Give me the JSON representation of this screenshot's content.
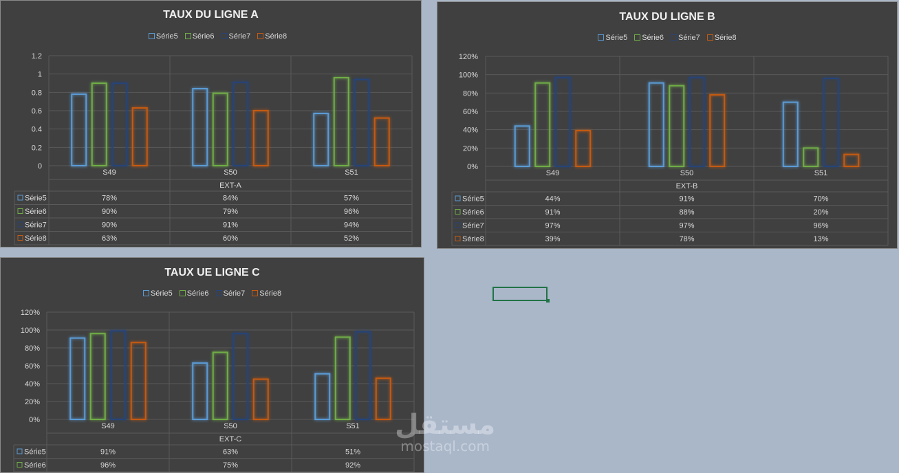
{
  "chart_data": [
    {
      "type": "bar",
      "title": "TAUX DU LIGNE A",
      "categories": [
        "S49",
        "S50",
        "S51"
      ],
      "group_label": "EXT-A",
      "ylim": [
        0,
        1.2
      ],
      "ytick_values": [
        0,
        0.2,
        0.4,
        0.6,
        0.8,
        1,
        1.2
      ],
      "yticks": [
        "0",
        "0.2",
        "0.4",
        "0.6",
        "0.8",
        "1",
        "1.2"
      ],
      "series": [
        {
          "name": "Série5",
          "color": "#5b9bd5",
          "values": [
            0.78,
            0.84,
            0.57
          ],
          "labels": [
            "78%",
            "84%",
            "57%"
          ]
        },
        {
          "name": "Série6",
          "color": "#70ad47",
          "values": [
            0.9,
            0.79,
            0.96
          ],
          "labels": [
            "90%",
            "79%",
            "96%"
          ]
        },
        {
          "name": "Série7",
          "color": "#264478",
          "values": [
            0.9,
            0.91,
            0.94
          ],
          "labels": [
            "90%",
            "91%",
            "94%"
          ]
        },
        {
          "name": "Série8",
          "color": "#c55a11",
          "values": [
            0.63,
            0.6,
            0.52
          ],
          "labels": [
            "63%",
            "60%",
            "52%"
          ]
        }
      ]
    },
    {
      "type": "bar",
      "title": "TAUX DU LIGNE B",
      "categories": [
        "S49",
        "S50",
        "S51"
      ],
      "group_label": "EXT-B",
      "ylim": [
        0,
        1.2
      ],
      "ytick_values": [
        0,
        0.2,
        0.4,
        0.6,
        0.8,
        1,
        1.2
      ],
      "yticks": [
        "0%",
        "20%",
        "40%",
        "60%",
        "80%",
        "100%",
        "120%"
      ],
      "series": [
        {
          "name": "Série5",
          "color": "#5b9bd5",
          "values": [
            0.44,
            0.91,
            0.7
          ],
          "labels": [
            "44%",
            "91%",
            "70%"
          ]
        },
        {
          "name": "Série6",
          "color": "#70ad47",
          "values": [
            0.91,
            0.88,
            0.2
          ],
          "labels": [
            "91%",
            "88%",
            "20%"
          ]
        },
        {
          "name": "Série7",
          "color": "#264478",
          "values": [
            0.97,
            0.97,
            0.96
          ],
          "labels": [
            "97%",
            "97%",
            "96%"
          ]
        },
        {
          "name": "Série8",
          "color": "#c55a11",
          "values": [
            0.39,
            0.78,
            0.13
          ],
          "labels": [
            "39%",
            "78%",
            "13%"
          ]
        }
      ]
    },
    {
      "type": "bar",
      "title": "TAUX UE LIGNE C",
      "categories": [
        "S49",
        "S50",
        "S51"
      ],
      "group_label": "EXT-C",
      "ylim": [
        0,
        1.2
      ],
      "ytick_values": [
        0,
        0.2,
        0.4,
        0.6,
        0.8,
        1,
        1.2
      ],
      "yticks": [
        "0%",
        "20%",
        "40%",
        "60%",
        "80%",
        "100%",
        "120%"
      ],
      "series": [
        {
          "name": "Série5",
          "color": "#5b9bd5",
          "values": [
            0.91,
            0.63,
            0.51
          ],
          "labels": [
            "91%",
            "63%",
            "51%"
          ]
        },
        {
          "name": "Série6",
          "color": "#70ad47",
          "values": [
            0.96,
            0.75,
            0.92
          ],
          "labels": [
            "96%",
            "75%",
            "92%"
          ]
        },
        {
          "name": "Série7",
          "color": "#264478",
          "values": [
            0.99,
            0.96,
            0.98
          ],
          "labels": [
            "",
            "",
            ""
          ]
        },
        {
          "name": "Série8",
          "color": "#c55a11",
          "values": [
            0.86,
            0.45,
            0.46
          ],
          "labels": [
            "",
            "",
            ""
          ]
        }
      ]
    }
  ],
  "watermark": {
    "arabic": "مستقل",
    "latin": "mostaql.com"
  }
}
